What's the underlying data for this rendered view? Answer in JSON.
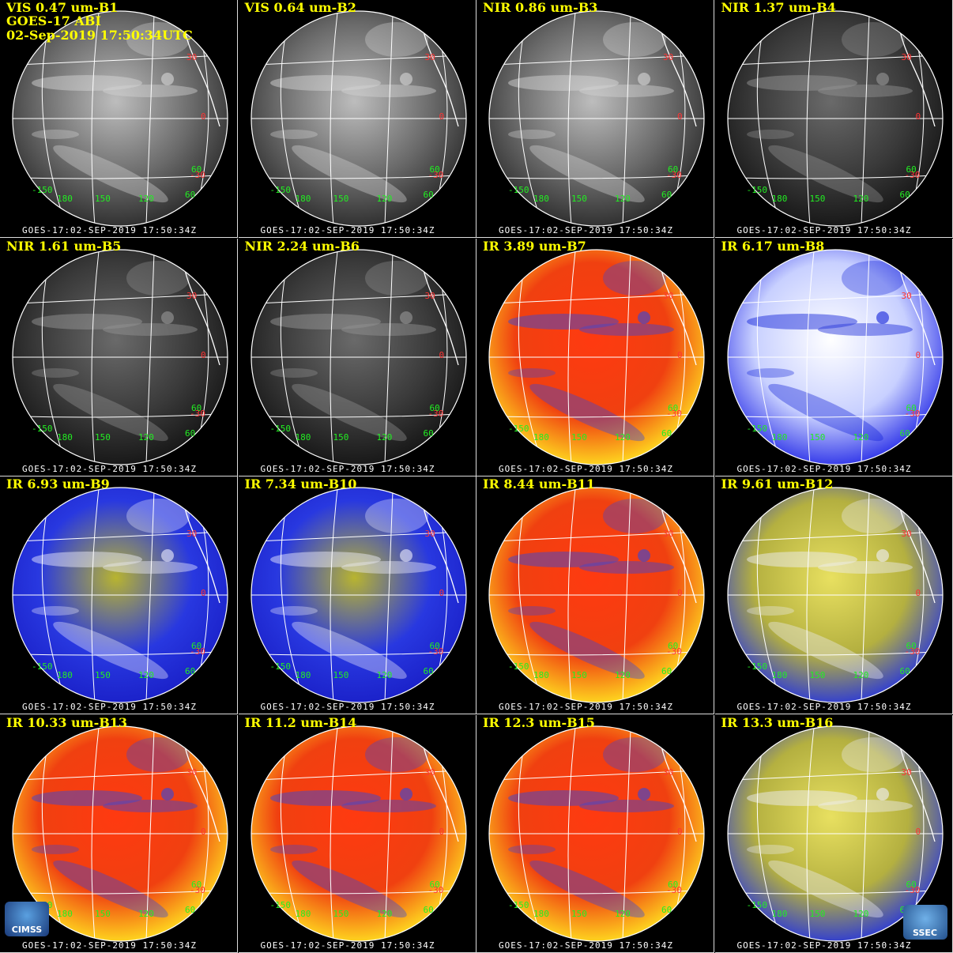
{
  "header": {
    "satellite": "GOES-17 ABI",
    "datetime": "02-Sep-2019 17:50:34UTC"
  },
  "panels": [
    {
      "title": "VIS 0.47 um-B1",
      "style": "vis"
    },
    {
      "title": "VIS 0.64 um-B2",
      "style": "vis"
    },
    {
      "title": "NIR 0.86 um-B3",
      "style": "vis"
    },
    {
      "title": "NIR 1.37 um-B4",
      "style": "dark"
    },
    {
      "title": "NIR 1.61 um-B5",
      "style": "dark"
    },
    {
      "title": "NIR 2.24 um-B6",
      "style": "dark"
    },
    {
      "title": "IR 3.89 um-B7",
      "style": "ir-red"
    },
    {
      "title": "IR 6.17 um-B8",
      "style": "wv-white"
    },
    {
      "title": "IR 6.93 um-B9",
      "style": "wv-blue"
    },
    {
      "title": "IR 7.34 um-B10",
      "style": "wv-blue"
    },
    {
      "title": "IR 8.44 um-B11",
      "style": "ir-red"
    },
    {
      "title": "IR 9.61 um-B12",
      "style": "ozone"
    },
    {
      "title": "IR 10.33 um-B13",
      "style": "ir-red"
    },
    {
      "title": "IR 11.2 um-B14",
      "style": "ir-red"
    },
    {
      "title": "IR 12.3 um-B15",
      "style": "ir-red"
    },
    {
      "title": "IR 13.3 um-B16",
      "style": "ozone"
    }
  ],
  "timestamp": "GOES-17:02-SEP-2019 17:50:34Z",
  "lat_labels": [
    "30",
    "0",
    "-30"
  ],
  "lon_labels": [
    "-150",
    "180",
    "150",
    "120",
    "60",
    "60"
  ],
  "logos": {
    "cimss": "CIMSS",
    "ssec": "SSEC"
  },
  "colors": {
    "title": "#ffff00",
    "lat": "#ff3333",
    "lon": "#22ee22",
    "background": "#000000"
  }
}
